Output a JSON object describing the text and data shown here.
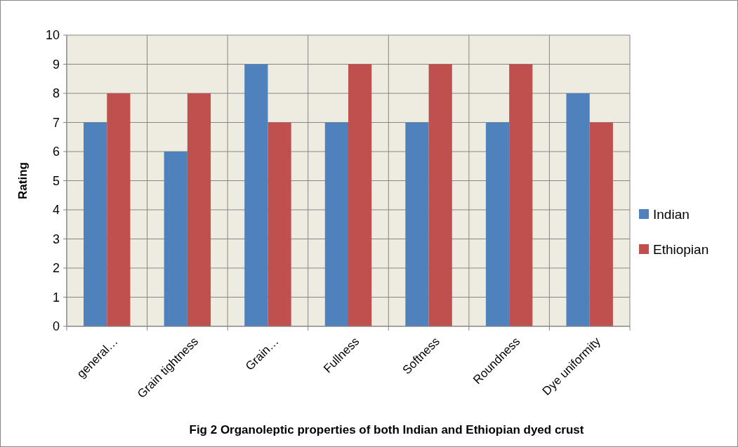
{
  "chart_data": {
    "type": "bar",
    "title": "Fig  2   Organoleptic properties of both Indian and Ethiopian dyed crust",
    "ylabel": "Rating",
    "categories": [
      "general…",
      "Grain tightness",
      "Grain…",
      "Fullness",
      "Softness",
      "Roundness",
      "Dye uniformity"
    ],
    "series": [
      {
        "name": "Indian",
        "color": "#4f81bd",
        "values": [
          7,
          6,
          9,
          7,
          7,
          7,
          8
        ]
      },
      {
        "name": "Ethiopian",
        "color": "#c0504d",
        "values": [
          8,
          8,
          7,
          9,
          9,
          9,
          7
        ]
      }
    ],
    "ylim": [
      0,
      10
    ],
    "yticks": [
      0,
      1,
      2,
      3,
      4,
      5,
      6,
      7,
      8,
      9,
      10
    ],
    "grid": true,
    "legend": "right"
  }
}
